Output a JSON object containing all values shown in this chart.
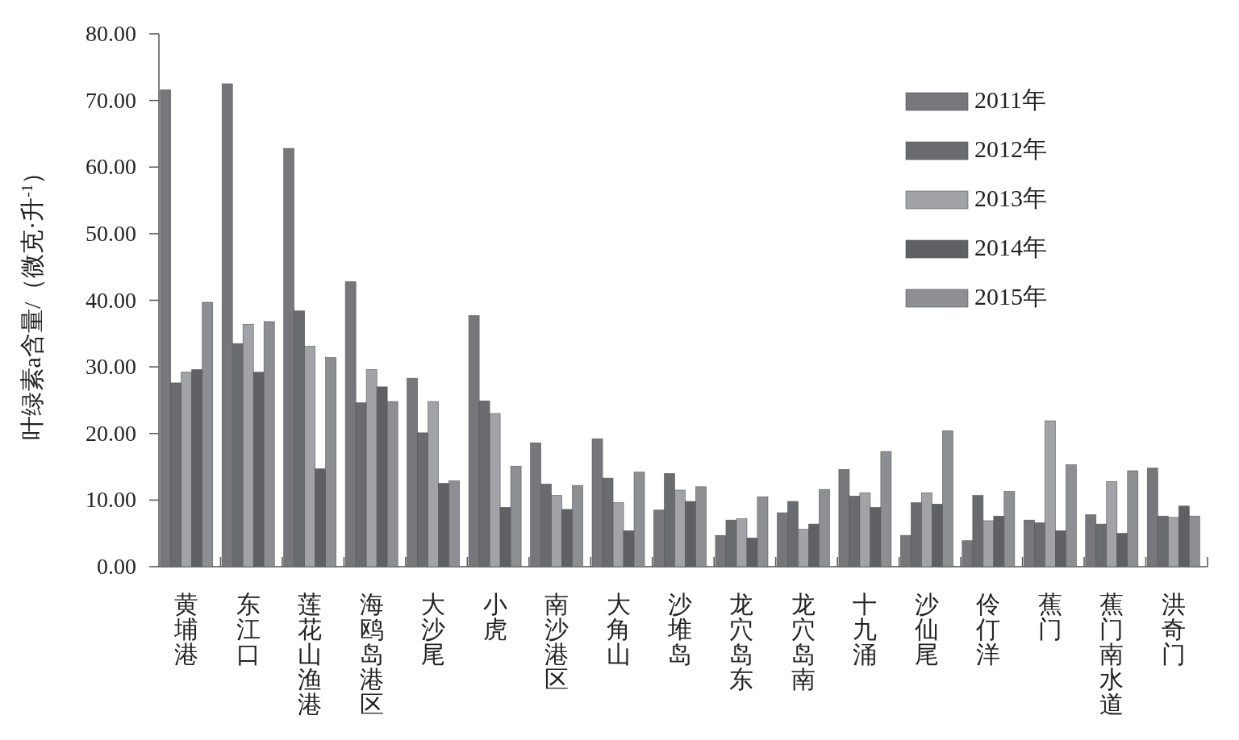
{
  "chart_data": {
    "type": "bar",
    "ylabel": "叶绿素a含量/（微克·升$^{-1}$）",
    "categories": [
      "黄埔港",
      "东江口",
      "莲花山渔港",
      "海鸥岛港区",
      "大沙尾",
      "小虎",
      "南沙港区",
      "大角山",
      "沙堆岛",
      "龙穴岛东",
      "龙穴岛南",
      "十九涌",
      "沙仙尾",
      "伶仃洋",
      "蕉门",
      "蕉门南水道",
      "洪奇门"
    ],
    "series": [
      {
        "name": "2011年",
        "color": "#77777b",
        "values": [
          71.6,
          72.5,
          62.8,
          42.8,
          28.3,
          37.7,
          18.6,
          19.2,
          8.5,
          4.7,
          8.1,
          14.6,
          4.7,
          3.9,
          7.0,
          7.8,
          14.8
        ]
      },
      {
        "name": "2012年",
        "color": "#6a6b6e",
        "values": [
          27.6,
          33.5,
          38.4,
          24.6,
          20.1,
          24.9,
          12.4,
          13.3,
          14.0,
          7.0,
          9.8,
          10.6,
          9.6,
          10.7,
          6.6,
          6.4,
          7.6
        ]
      },
      {
        "name": "2013年",
        "color": "#a2a3a6",
        "values": [
          29.2,
          36.4,
          33.1,
          29.6,
          24.8,
          23.0,
          10.7,
          9.6,
          11.5,
          7.2,
          5.6,
          11.1,
          11.1,
          6.9,
          21.9,
          12.8,
          7.4
        ]
      },
      {
        "name": "2014年",
        "color": "#5f6063",
        "values": [
          29.6,
          29.2,
          14.7,
          27.0,
          12.5,
          8.9,
          8.6,
          5.4,
          9.8,
          4.3,
          6.4,
          8.9,
          9.4,
          7.6,
          5.4,
          5.0,
          9.1
        ]
      },
      {
        "name": "2015年",
        "color": "#8e8f92",
        "values": [
          39.7,
          36.8,
          31.4,
          24.8,
          12.9,
          15.1,
          12.2,
          14.2,
          12.0,
          10.5,
          11.6,
          17.3,
          20.4,
          11.3,
          15.3,
          14.4,
          7.6
        ]
      }
    ],
    "ylim": [
      0,
      80
    ],
    "yticks": [
      {
        "value": 0,
        "label": "0.00"
      },
      {
        "value": 10,
        "label": "10.00"
      },
      {
        "value": 20,
        "label": "20.00"
      },
      {
        "value": 30,
        "label": "30.00"
      },
      {
        "value": 40,
        "label": "40.00"
      },
      {
        "value": 50,
        "label": "50.00"
      },
      {
        "value": 60,
        "label": "60.00"
      },
      {
        "value": 70,
        "label": "70.00"
      },
      {
        "value": 80,
        "label": "80.00"
      }
    ],
    "legend": "top right"
  }
}
